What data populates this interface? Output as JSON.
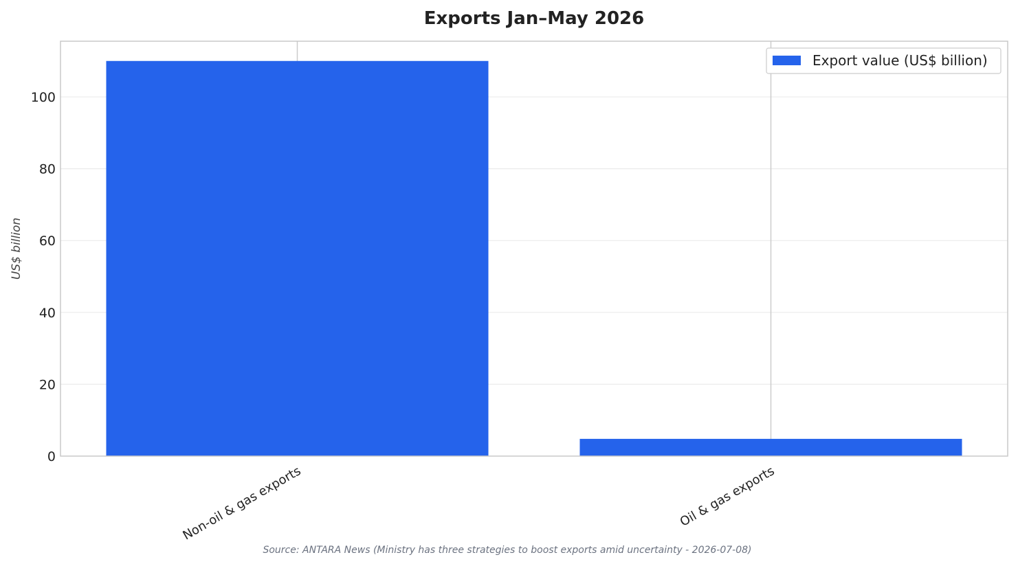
{
  "chart_data": {
    "type": "bar",
    "title": "Exports Jan–May 2026",
    "xlabel": "",
    "ylabel": "US$ billion",
    "categories": [
      "Non-oil & gas exports",
      "Oil & gas exports"
    ],
    "series": [
      {
        "name": "Export value (US$ billion)",
        "values": [
          110.0,
          4.8
        ],
        "color": "#2563eb"
      }
    ],
    "ylim": [
      0,
      115.5
    ],
    "yticks": [
      0,
      20,
      40,
      60,
      80,
      100
    ],
    "grid": true,
    "legend": "top-right"
  },
  "source": "Source: ANTARA News (Ministry has three strategies to boost exports amid uncertainty - 2026-07-08)"
}
